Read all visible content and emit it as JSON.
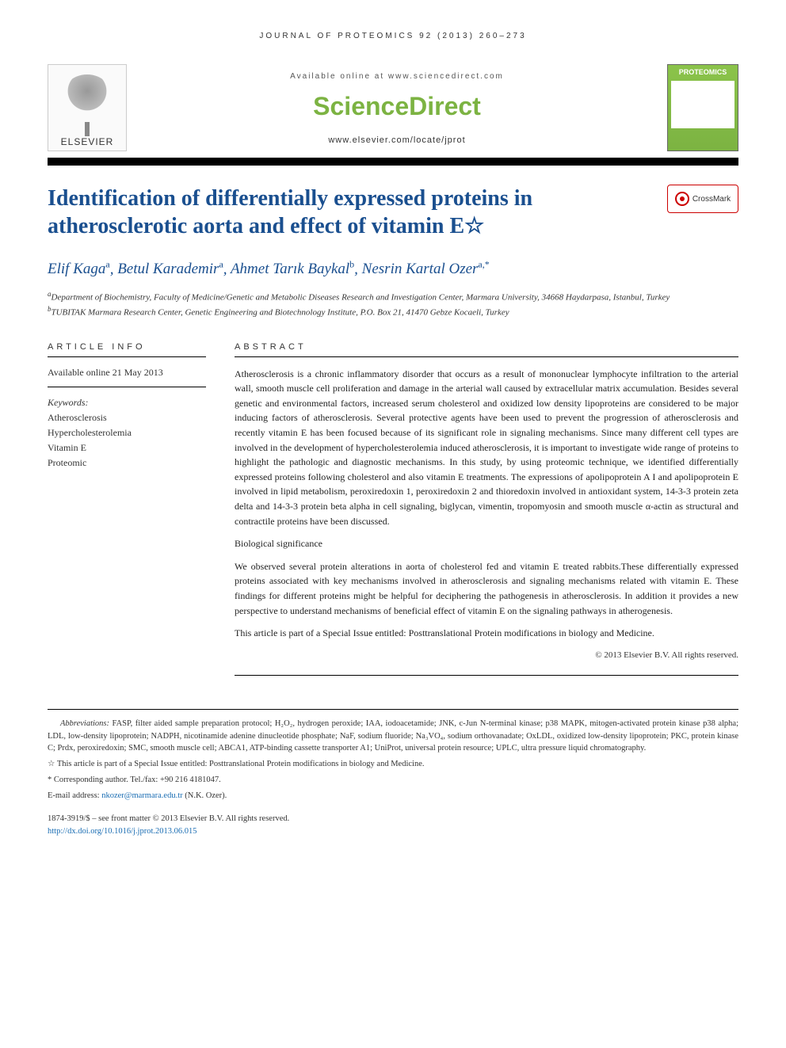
{
  "running_head": "JOURNAL OF PROTEOMICS 92 (2013) 260–273",
  "header": {
    "available": "Available online at www.sciencedirect.com",
    "brand": "ScienceDirect",
    "journal_url": "www.elsevier.com/locate/jprot",
    "elsevier": "ELSEVIER",
    "cover_title": "PROTEOMICS"
  },
  "title": "Identification of differentially expressed proteins in atherosclerotic aorta and effect of vitamin E",
  "title_star": "☆",
  "crossmark": "CrossMark",
  "authors": [
    {
      "name": "Elif Kaga",
      "sup": "a"
    },
    {
      "name": "Betul Karademir",
      "sup": "a"
    },
    {
      "name": "Ahmet Tarık Baykal",
      "sup": "b"
    },
    {
      "name": "Nesrin Kartal Ozer",
      "sup": "a,*"
    }
  ],
  "affiliations": [
    {
      "sup": "a",
      "text": "Department of Biochemistry, Faculty of Medicine/Genetic and Metabolic Diseases Research and Investigation Center, Marmara University, 34668 Haydarpasa, Istanbul, Turkey"
    },
    {
      "sup": "b",
      "text": "TUBITAK Marmara Research Center, Genetic Engineering and Biotechnology Institute, P.O. Box 21, 41470 Gebze Kocaeli, Turkey"
    }
  ],
  "article_info": {
    "head": "ARTICLE INFO",
    "available": "Available online 21 May 2013",
    "keywords_label": "Keywords:",
    "keywords": [
      "Atherosclerosis",
      "Hypercholesterolemia",
      "Vitamin E",
      "Proteomic"
    ]
  },
  "abstract": {
    "head": "ABSTRACT",
    "body": "Atherosclerosis is a chronic inflammatory disorder that occurs as a result of mononuclear lymphocyte infiltration to the arterial wall, smooth muscle cell proliferation and damage in the arterial wall caused by extracellular matrix accumulation. Besides several genetic and environmental factors, increased serum cholesterol and oxidized low density lipoproteins are considered to be major inducing factors of atherosclerosis. Several protective agents have been used to prevent the progression of atherosclerosis and recently vitamin E has been focused because of its significant role in signaling mechanisms. Since many different cell types are involved in the development of hypercholesterolemia induced atherosclerosis, it is important to investigate wide range of proteins to highlight the pathologic and diagnostic mechanisms. In this study, by using proteomic technique, we identified differentially expressed proteins following cholesterol and also vitamin E treatments. The expressions of apolipoprotein A I and apolipoprotein E involved in lipid metabolism, peroxiredoxin 1, peroxiredoxin 2 and thioredoxin involved in antioxidant system, 14-3-3 protein zeta delta and 14-3-3 protein beta alpha in cell signaling, biglycan, vimentin, tropomyosin and smooth muscle α-actin as structural and contractile proteins have been discussed.",
    "sig_head": "Biological significance",
    "significance": "We observed several protein alterations in aorta of cholesterol fed and vitamin E treated rabbits.These differentially expressed proteins associated with key mechanisms involved in atherosclerosis and signaling mechanisms related with vitamin E. These findings for different proteins might be helpful for deciphering the pathogenesis in atherosclerosis. In addition it provides a new perspective to understand mechanisms of beneficial effect of vitamin E on the signaling pathways in atherogenesis.",
    "special_issue": "This article is part of a Special Issue entitled: Posttranslational Protein modifications in biology and Medicine.",
    "copyright": "© 2013 Elsevier B.V. All rights reserved."
  },
  "footer": {
    "abbrev_label": "Abbreviations:",
    "abbrev": " FASP, filter aided sample preparation protocol; H₂O₂, hydrogen peroxide; IAA, iodoacetamide; JNK, c-Jun N-terminal kinase; p38 MAPK, mitogen-activated protein kinase p38 alpha; LDL, low-density lipoprotein; NADPH, nicotinamide adenine dinucleotide phosphate; NaF, sodium fluoride; Na₃VO₄, sodium orthovanadate; OxLDL, oxidized low-density lipoprotein; PKC, protein kinase C; Prdx, peroxiredoxin; SMC, smooth muscle cell; ABCA1, ATP-binding cassette transporter A1; UniProt, universal protein resource; UPLC, ultra pressure liquid chromatography.",
    "star_note": "☆ This article is part of a Special Issue entitled: Posttranslational Protein modifications in biology and Medicine.",
    "corresponding": "* Corresponding author. Tel./fax: +90 216 4181047.",
    "email_label": "E-mail address: ",
    "email": "nkozer@marmara.edu.tr",
    "email_suffix": " (N.K. Ozer).",
    "issn": "1874-3919/$ – see front matter © 2013 Elsevier B.V. All rights reserved.",
    "doi": "http://dx.doi.org/10.1016/j.jprot.2013.06.015"
  },
  "colors": {
    "title_color": "#1a4f8f",
    "brand_green": "#7cb342",
    "link_blue": "#1a6db3"
  }
}
